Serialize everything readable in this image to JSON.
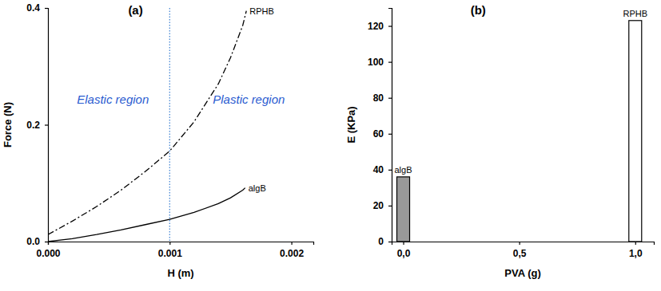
{
  "chart_data": [
    {
      "type": "line",
      "title": "(a)",
      "x_label": "H (m)",
      "y_label": "Force (N)",
      "xlim": [
        0,
        0.00218
      ],
      "ylim": [
        0,
        0.4
      ],
      "xticks": [
        {
          "value": 0,
          "label": "0.000"
        },
        {
          "value": 0.001,
          "label": "0.001"
        },
        {
          "value": 0.002,
          "label": "0.002"
        }
      ],
      "yticks": [
        {
          "value": 0,
          "label": "0.0"
        },
        {
          "value": 0.2,
          "label": "0.2"
        },
        {
          "value": 0.4,
          "label": "0.4"
        }
      ],
      "vline": 0.001,
      "annotations": [
        "Elastic region",
        "Plastic region"
      ],
      "series": [
        {
          "name": "RPHB",
          "color": "#000000",
          "line_style": "dashdot",
          "x": [
            0,
            0.0002,
            0.0004,
            0.0006,
            0.0008,
            0.001,
            0.0012,
            0.0014,
            0.0015,
            0.0016,
            0.00163
          ],
          "values": [
            0.012,
            0.035,
            0.06,
            0.088,
            0.12,
            0.155,
            0.205,
            0.27,
            0.315,
            0.37,
            0.395
          ]
        },
        {
          "name": "algB",
          "color": "#000000",
          "line_style": "solid",
          "x": [
            0,
            0.0002,
            0.0004,
            0.0006,
            0.0008,
            0.001,
            0.0012,
            0.0014,
            0.0015,
            0.0016,
            0.00162
          ],
          "values": [
            0.0,
            0.005,
            0.012,
            0.02,
            0.029,
            0.038,
            0.05,
            0.065,
            0.075,
            0.088,
            0.092
          ]
        }
      ]
    },
    {
      "type": "bar",
      "title": "(b)",
      "x_label": "PVA (g)",
      "y_label": "E (KPa)",
      "xlim": [
        -0.05,
        1.08
      ],
      "ylim": [
        0,
        130
      ],
      "xticks": [
        {
          "value": 0,
          "label": "0,0"
        },
        {
          "value": 0.5,
          "label": "0,5"
        },
        {
          "value": 1,
          "label": "1,0"
        }
      ],
      "yticks": [
        0,
        20,
        40,
        60,
        80,
        100,
        120
      ],
      "series": [
        {
          "name": "algB",
          "color": "#999999",
          "x": [
            0
          ],
          "values": [
            36
          ]
        },
        {
          "name": "RPHB",
          "color": "#ffffff",
          "x": [
            1
          ],
          "values": [
            123
          ]
        }
      ]
    }
  ]
}
